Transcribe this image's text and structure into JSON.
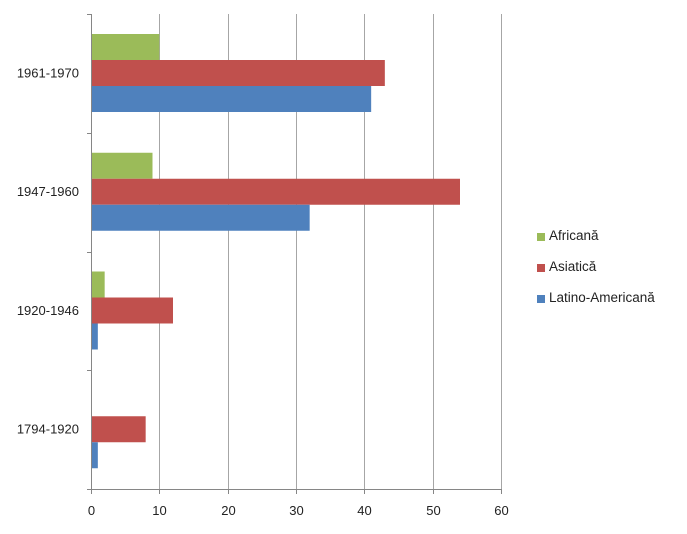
{
  "chart_data": {
    "type": "bar",
    "orientation": "horizontal",
    "title": "",
    "xlabel": "",
    "ylabel": "",
    "categories": [
      "1794-1920",
      "1920-1946",
      "1947-1960",
      "1961-1970"
    ],
    "series": [
      {
        "name": "Africană",
        "color": "#9BBB59",
        "values": [
          0,
          2,
          9,
          10
        ]
      },
      {
        "name": "Asiatică",
        "color": "#C0504D",
        "values": [
          8,
          12,
          54,
          43
        ]
      },
      {
        "name": "Latino-Americană",
        "color": "#4F81BD",
        "values": [
          1,
          1,
          32,
          41
        ]
      }
    ],
    "xlim": [
      0,
      60
    ],
    "x_ticks": [
      0,
      10,
      20,
      30,
      40,
      50,
      60
    ],
    "grid": {
      "vertical": true,
      "horizontal": false,
      "color": "#A6A6A6"
    },
    "legend_position": "right"
  },
  "legend": {
    "items": [
      {
        "label": "Africană",
        "color": "#9BBB59"
      },
      {
        "label": "Asiatică",
        "color": "#C0504D"
      },
      {
        "label": "Latino-Americană",
        "color": "#4F81BD"
      }
    ]
  }
}
